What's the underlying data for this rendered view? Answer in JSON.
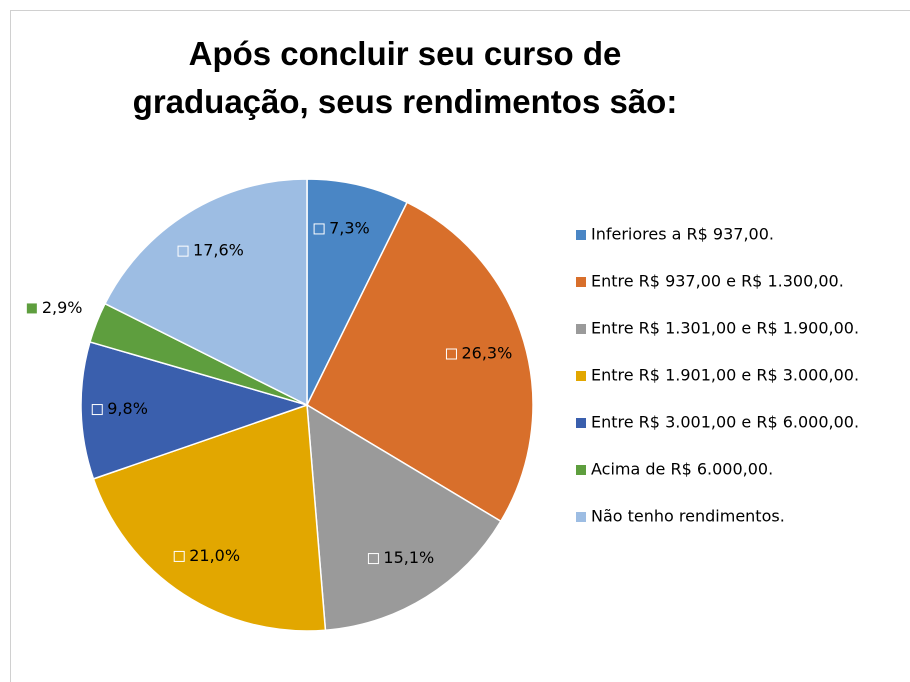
{
  "chart_data": {
    "type": "pie",
    "title": "Após concluir seu curso de graduação, seus rendimentos são:",
    "categories": [
      "Inferiores a R$ 937,00.",
      "Entre R$ 937,00 e R$ 1.300,00.",
      "Entre R$ 1.301,00 e R$ 1.900,00.",
      "Entre R$ 1.901,00 e R$ 3.000,00.",
      "Entre R$ 3.001,00 e R$ 6.000,00.",
      "Acima de R$ 6.000,00.",
      "Não tenho rendimentos."
    ],
    "values": [
      7.3,
      26.3,
      15.1,
      21.0,
      9.8,
      2.9,
      17.6
    ],
    "value_labels": [
      "7,3%",
      "26,3%",
      "15,1%",
      "21,0%",
      "9,8%",
      "2,9%",
      "17,6%"
    ],
    "colors": [
      "#4a86c5",
      "#d86f2b",
      "#9a9a9a",
      "#e2a700",
      "#3a5fad",
      "#5e9e3e",
      "#9dbde3"
    ],
    "legend": "right"
  }
}
